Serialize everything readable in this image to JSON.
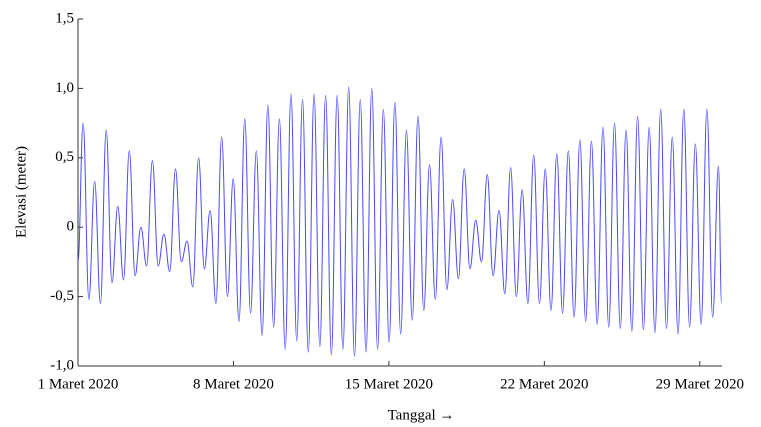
{
  "chart_data": {
    "type": "line",
    "xlabel": "Tanggal →",
    "ylabel": "Elevasi (meter)",
    "xlim": [
      1,
      30
    ],
    "ylim": [
      -1,
      1.5
    ],
    "xticks": [
      {
        "value": 1,
        "label": "1 Maret 2020"
      },
      {
        "value": 8,
        "label": "8 Maret 2020"
      },
      {
        "value": 15,
        "label": "15 Maret 2020"
      },
      {
        "value": 22,
        "label": "22 Maret 2020"
      },
      {
        "value": 29,
        "label": "29 Maret 2020"
      }
    ],
    "yticks": [
      {
        "value": -1,
        "label": "-1,0"
      },
      {
        "value": -0.5,
        "label": "-0,5"
      },
      0,
      {
        "value": 0.5,
        "label": "0,5"
      },
      {
        "value": 1,
        "label": "1,0"
      },
      {
        "value": 1.5,
        "label": "1,5"
      }
    ],
    "grid": false,
    "series": [
      {
        "color": "#4a4aff",
        "x": [
          1.0,
          1.23,
          1.49,
          1.75,
          2.01,
          2.27,
          2.53,
          2.79,
          3.05,
          3.31,
          3.57,
          3.83,
          4.09,
          4.35,
          4.61,
          4.87,
          5.13,
          5.39,
          5.65,
          5.91,
          6.17,
          6.43,
          6.69,
          6.95,
          7.21,
          7.47,
          7.73,
          7.99,
          8.25,
          8.51,
          8.77,
          9.03,
          9.29,
          9.55,
          9.81,
          10.07,
          10.33,
          10.59,
          10.85,
          11.11,
          11.37,
          11.63,
          11.89,
          12.15,
          12.41,
          12.67,
          12.93,
          13.19,
          13.45,
          13.71,
          13.97,
          14.23,
          14.49,
          14.75,
          15.01,
          15.27,
          15.53,
          15.79,
          16.05,
          16.31,
          16.57,
          16.83,
          17.09,
          17.35,
          17.61,
          17.87,
          18.13,
          18.39,
          18.65,
          18.91,
          19.17,
          19.43,
          19.69,
          19.96,
          20.22,
          20.48,
          20.74,
          21.0,
          21.26,
          21.52,
          21.78,
          22.04,
          22.3,
          22.56,
          22.82,
          23.08,
          23.34,
          23.6,
          23.86,
          24.12,
          24.38,
          24.64,
          24.9,
          25.16,
          25.42,
          25.68,
          25.94,
          26.2,
          26.46,
          26.72,
          26.98,
          27.24,
          27.5,
          27.76,
          28.02,
          28.28,
          28.54,
          28.8,
          29.06,
          29.32,
          29.58,
          29.84,
          29.98
        ],
        "values": [
          -0.25,
          0.75,
          -0.52,
          0.33,
          -0.55,
          0.7,
          -0.4,
          0.15,
          -0.38,
          0.55,
          -0.35,
          0.0,
          -0.28,
          0.48,
          -0.28,
          -0.05,
          -0.32,
          0.42,
          -0.25,
          -0.1,
          -0.43,
          0.5,
          -0.3,
          0.12,
          -0.55,
          0.65,
          -0.5,
          0.35,
          -0.68,
          0.78,
          -0.62,
          0.55,
          -0.78,
          0.88,
          -0.72,
          0.78,
          -0.88,
          0.96,
          -0.82,
          0.92,
          -0.9,
          0.96,
          -0.86,
          0.95,
          -0.92,
          0.95,
          -0.88,
          1.01,
          -0.93,
          0.92,
          -0.9,
          1.0,
          -0.88,
          0.85,
          -0.83,
          0.9,
          -0.77,
          0.7,
          -0.67,
          0.8,
          -0.6,
          0.45,
          -0.52,
          0.65,
          -0.45,
          0.2,
          -0.37,
          0.42,
          -0.3,
          0.05,
          -0.25,
          0.38,
          -0.35,
          0.12,
          -0.48,
          0.43,
          -0.5,
          0.27,
          -0.55,
          0.52,
          -0.55,
          0.42,
          -0.6,
          0.53,
          -0.62,
          0.55,
          -0.65,
          0.63,
          -0.68,
          0.62,
          -0.7,
          0.72,
          -0.72,
          0.75,
          -0.73,
          0.7,
          -0.75,
          0.8,
          -0.74,
          0.72,
          -0.76,
          0.85,
          -0.73,
          0.65,
          -0.77,
          0.85,
          -0.72,
          0.6,
          -0.7,
          0.85,
          -0.65,
          0.44,
          -0.55
        ]
      }
    ]
  }
}
